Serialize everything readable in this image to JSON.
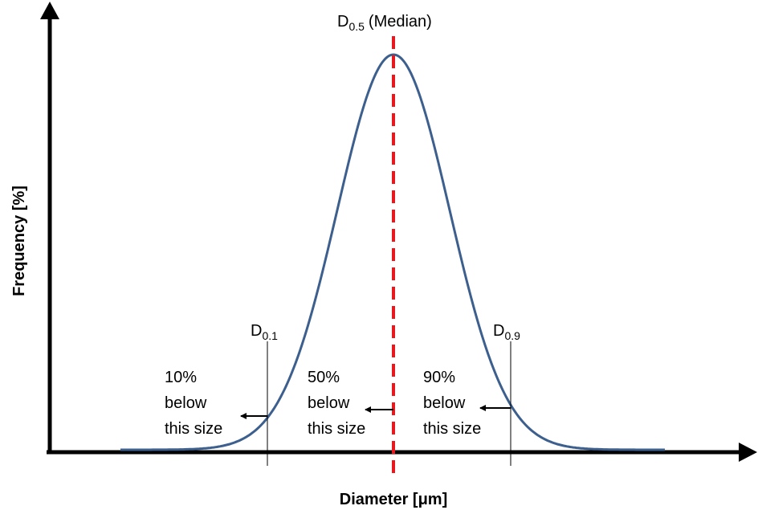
{
  "axes": {
    "y_label": "Frequency [%]",
    "x_label": "Diameter [μm]"
  },
  "markers": [
    {
      "symbol": "D",
      "subscript": "0.1"
    },
    {
      "symbol": "D",
      "subscript": "0.5",
      "suffix": "(Median)"
    },
    {
      "symbol": "D",
      "subscript": "0.9"
    }
  ],
  "notes": [
    {
      "lines": [
        "10%",
        "below",
        "this size"
      ]
    },
    {
      "lines": [
        "50%",
        "below",
        "this size"
      ]
    },
    {
      "lines": [
        "90%",
        "below",
        "this size"
      ]
    }
  ]
}
